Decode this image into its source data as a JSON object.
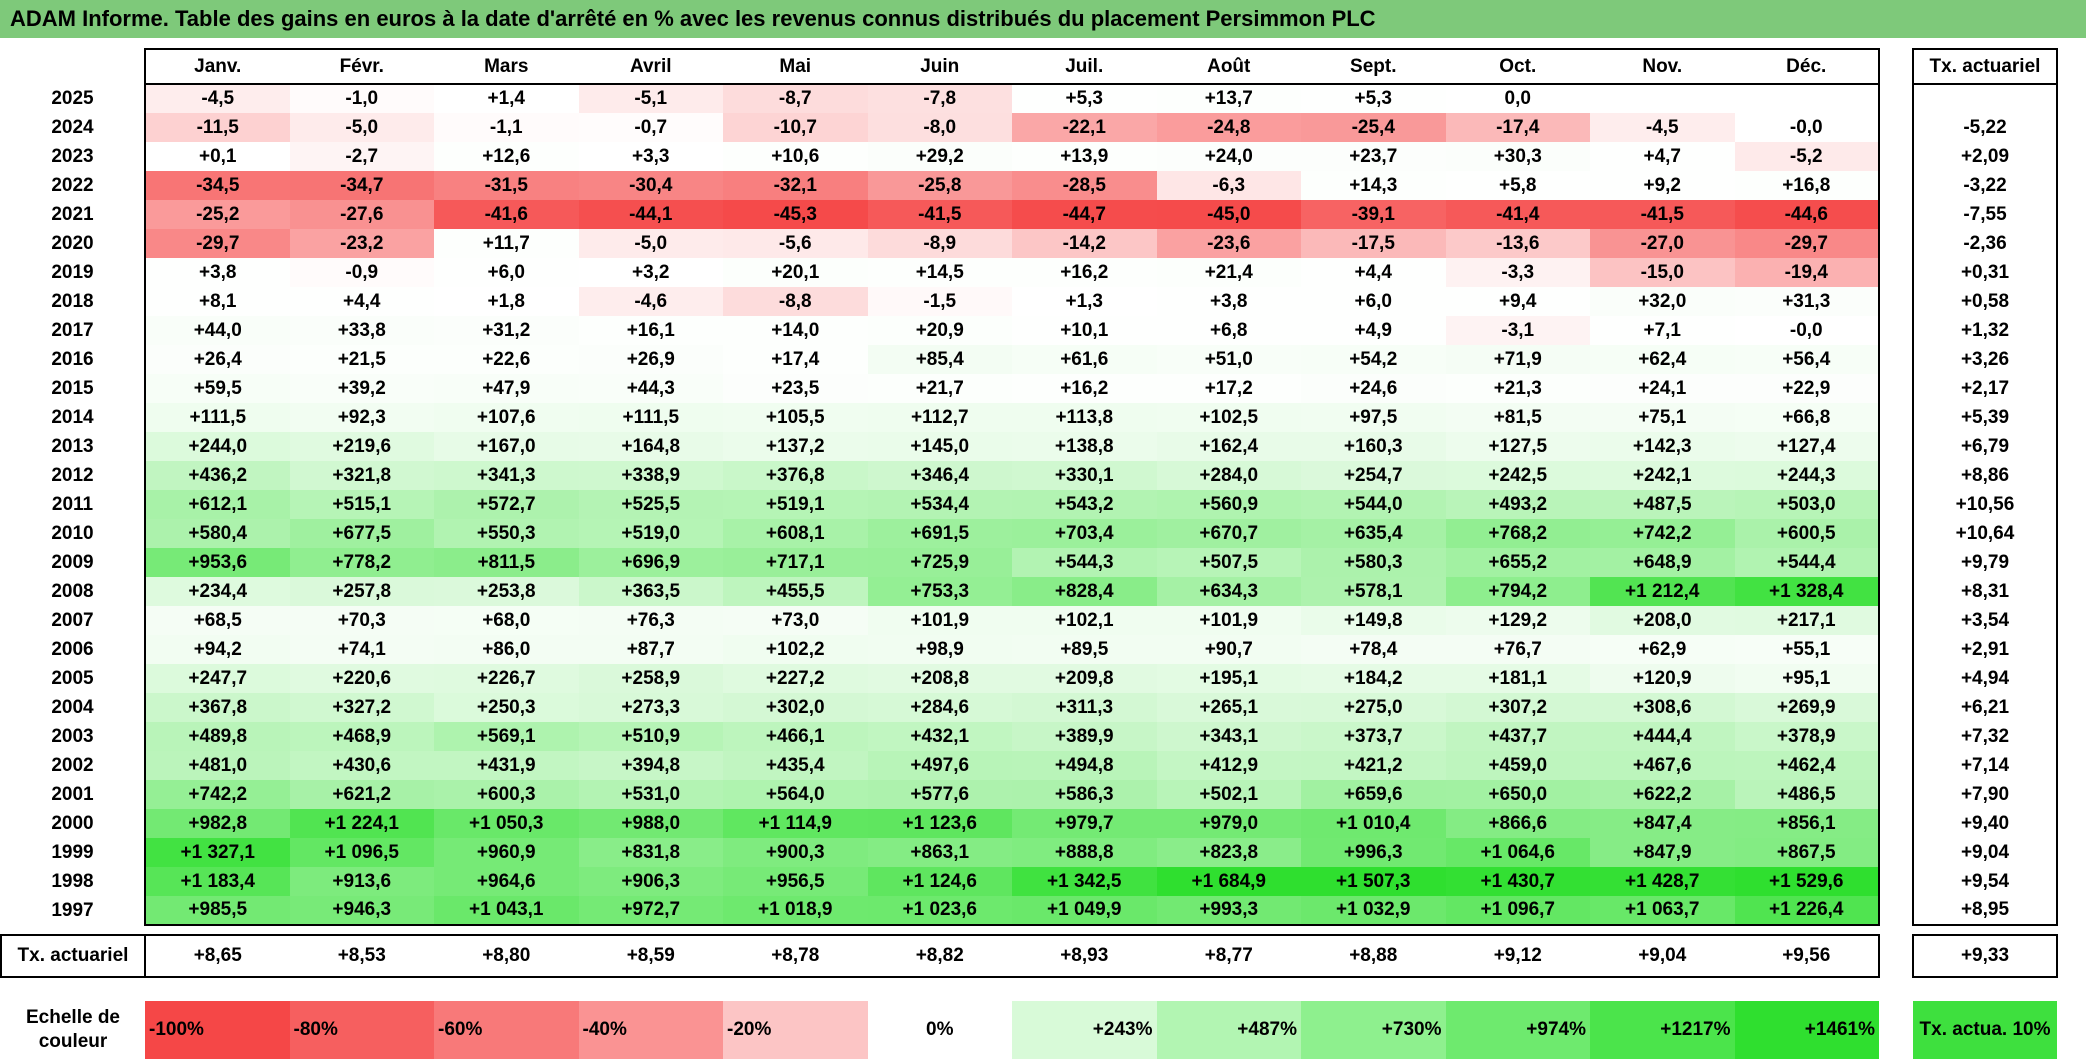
{
  "title": "ADAM Informe. Table des gains en euros à la date d'arrêté en % avec les revenus connus distribués du placement Persimmon PLC",
  "months": [
    "Janv.",
    "Févr.",
    "Mars",
    "Avril",
    "Mai",
    "Juin",
    "Juil.",
    "Août",
    "Sept.",
    "Oct.",
    "Nov.",
    "Déc."
  ],
  "rate_header": "Tx. actuariel",
  "rows": [
    {
      "year": "2025",
      "values": [
        "-4,5",
        "-1,0",
        "+1,4",
        "-5,1",
        "-8,7",
        "-7,8",
        "+5,3",
        "+13,7",
        "+5,3",
        "0,0",
        "",
        ""
      ],
      "rate": ""
    },
    {
      "year": "2024",
      "values": [
        "-11,5",
        "-5,0",
        "-1,1",
        "-0,7",
        "-10,7",
        "-8,0",
        "-22,1",
        "-24,8",
        "-25,4",
        "-17,4",
        "-4,5",
        "-0,0"
      ],
      "rate": "-5,22"
    },
    {
      "year": "2023",
      "values": [
        "+0,1",
        "-2,7",
        "+12,6",
        "+3,3",
        "+10,6",
        "+29,2",
        "+13,9",
        "+24,0",
        "+23,7",
        "+30,3",
        "+4,7",
        "-5,2"
      ],
      "rate": "+2,09"
    },
    {
      "year": "2022",
      "values": [
        "-34,5",
        "-34,7",
        "-31,5",
        "-30,4",
        "-32,1",
        "-25,8",
        "-28,5",
        "-6,3",
        "+14,3",
        "+5,8",
        "+9,2",
        "+16,8"
      ],
      "rate": "-3,22"
    },
    {
      "year": "2021",
      "values": [
        "-25,2",
        "-27,6",
        "-41,6",
        "-44,1",
        "-45,3",
        "-41,5",
        "-44,7",
        "-45,0",
        "-39,1",
        "-41,4",
        "-41,5",
        "-44,6"
      ],
      "rate": "-7,55"
    },
    {
      "year": "2020",
      "values": [
        "-29,7",
        "-23,2",
        "+11,7",
        "-5,0",
        "-5,6",
        "-8,9",
        "-14,2",
        "-23,6",
        "-17,5",
        "-13,6",
        "-27,0",
        "-29,7"
      ],
      "rate": "-2,36"
    },
    {
      "year": "2019",
      "values": [
        "+3,8",
        "-0,9",
        "+6,0",
        "+3,2",
        "+20,1",
        "+14,5",
        "+16,2",
        "+21,4",
        "+4,4",
        "-3,3",
        "-15,0",
        "-19,4"
      ],
      "rate": "+0,31"
    },
    {
      "year": "2018",
      "values": [
        "+8,1",
        "+4,4",
        "+1,8",
        "-4,6",
        "-8,8",
        "-1,5",
        "+1,3",
        "+3,8",
        "+6,0",
        "+9,4",
        "+32,0",
        "+31,3"
      ],
      "rate": "+0,58"
    },
    {
      "year": "2017",
      "values": [
        "+44,0",
        "+33,8",
        "+31,2",
        "+16,1",
        "+14,0",
        "+20,9",
        "+10,1",
        "+6,8",
        "+4,9",
        "-3,1",
        "+7,1",
        "-0,0"
      ],
      "rate": "+1,32"
    },
    {
      "year": "2016",
      "values": [
        "+26,4",
        "+21,5",
        "+22,6",
        "+26,9",
        "+17,4",
        "+85,4",
        "+61,6",
        "+51,0",
        "+54,2",
        "+71,9",
        "+62,4",
        "+56,4"
      ],
      "rate": "+3,26"
    },
    {
      "year": "2015",
      "values": [
        "+59,5",
        "+39,2",
        "+47,9",
        "+44,3",
        "+23,5",
        "+21,7",
        "+16,2",
        "+17,2",
        "+24,6",
        "+21,3",
        "+24,1",
        "+22,9"
      ],
      "rate": "+2,17"
    },
    {
      "year": "2014",
      "values": [
        "+111,5",
        "+92,3",
        "+107,6",
        "+111,5",
        "+105,5",
        "+112,7",
        "+113,8",
        "+102,5",
        "+97,5",
        "+81,5",
        "+75,1",
        "+66,8"
      ],
      "rate": "+5,39"
    },
    {
      "year": "2013",
      "values": [
        "+244,0",
        "+219,6",
        "+167,0",
        "+164,8",
        "+137,2",
        "+145,0",
        "+138,8",
        "+162,4",
        "+160,3",
        "+127,5",
        "+142,3",
        "+127,4"
      ],
      "rate": "+6,79"
    },
    {
      "year": "2012",
      "values": [
        "+436,2",
        "+321,8",
        "+341,3",
        "+338,9",
        "+376,8",
        "+346,4",
        "+330,1",
        "+284,0",
        "+254,7",
        "+242,5",
        "+242,1",
        "+244,3"
      ],
      "rate": "+8,86"
    },
    {
      "year": "2011",
      "values": [
        "+612,1",
        "+515,1",
        "+572,7",
        "+525,5",
        "+519,1",
        "+534,4",
        "+543,2",
        "+560,9",
        "+544,0",
        "+493,2",
        "+487,5",
        "+503,0"
      ],
      "rate": "+10,56"
    },
    {
      "year": "2010",
      "values": [
        "+580,4",
        "+677,5",
        "+550,3",
        "+519,0",
        "+608,1",
        "+691,5",
        "+703,4",
        "+670,7",
        "+635,4",
        "+768,2",
        "+742,2",
        "+600,5"
      ],
      "rate": "+10,64"
    },
    {
      "year": "2009",
      "values": [
        "+953,6",
        "+778,2",
        "+811,5",
        "+696,9",
        "+717,1",
        "+725,9",
        "+544,3",
        "+507,5",
        "+580,3",
        "+655,2",
        "+648,9",
        "+544,4"
      ],
      "rate": "+9,79"
    },
    {
      "year": "2008",
      "values": [
        "+234,4",
        "+257,8",
        "+253,8",
        "+363,5",
        "+455,5",
        "+753,3",
        "+828,4",
        "+634,3",
        "+578,1",
        "+794,2",
        "+1 212,4",
        "+1 328,4"
      ],
      "rate": "+8,31"
    },
    {
      "year": "2007",
      "values": [
        "+68,5",
        "+70,3",
        "+68,0",
        "+76,3",
        "+73,0",
        "+101,9",
        "+102,1",
        "+101,9",
        "+149,8",
        "+129,2",
        "+208,0",
        "+217,1"
      ],
      "rate": "+3,54"
    },
    {
      "year": "2006",
      "values": [
        "+94,2",
        "+74,1",
        "+86,0",
        "+87,7",
        "+102,2",
        "+98,9",
        "+89,5",
        "+90,7",
        "+78,4",
        "+76,7",
        "+62,9",
        "+55,1"
      ],
      "rate": "+2,91"
    },
    {
      "year": "2005",
      "values": [
        "+247,7",
        "+220,6",
        "+226,7",
        "+258,9",
        "+227,2",
        "+208,8",
        "+209,8",
        "+195,1",
        "+184,2",
        "+181,1",
        "+120,9",
        "+95,1"
      ],
      "rate": "+4,94"
    },
    {
      "year": "2004",
      "values": [
        "+367,8",
        "+327,2",
        "+250,3",
        "+273,3",
        "+302,0",
        "+284,6",
        "+311,3",
        "+265,1",
        "+275,0",
        "+307,2",
        "+308,6",
        "+269,9"
      ],
      "rate": "+6,21"
    },
    {
      "year": "2003",
      "values": [
        "+489,8",
        "+468,9",
        "+569,1",
        "+510,9",
        "+466,1",
        "+432,1",
        "+389,9",
        "+343,1",
        "+373,7",
        "+437,7",
        "+444,4",
        "+378,9"
      ],
      "rate": "+7,32"
    },
    {
      "year": "2002",
      "values": [
        "+481,0",
        "+430,6",
        "+431,9",
        "+394,8",
        "+435,4",
        "+497,6",
        "+494,8",
        "+412,9",
        "+421,2",
        "+459,0",
        "+467,6",
        "+462,4"
      ],
      "rate": "+7,14"
    },
    {
      "year": "2001",
      "values": [
        "+742,2",
        "+621,2",
        "+600,3",
        "+531,0",
        "+564,0",
        "+577,6",
        "+586,3",
        "+502,1",
        "+659,6",
        "+650,0",
        "+622,2",
        "+486,5"
      ],
      "rate": "+7,90"
    },
    {
      "year": "2000",
      "values": [
        "+982,8",
        "+1 224,1",
        "+1 050,3",
        "+988,0",
        "+1 114,9",
        "+1 123,6",
        "+979,7",
        "+979,0",
        "+1 010,4",
        "+866,6",
        "+847,4",
        "+856,1"
      ],
      "rate": "+9,40"
    },
    {
      "year": "1999",
      "values": [
        "+1 327,1",
        "+1 096,5",
        "+960,9",
        "+831,8",
        "+900,3",
        "+863,1",
        "+888,8",
        "+823,8",
        "+996,3",
        "+1 064,6",
        "+847,9",
        "+867,5"
      ],
      "rate": "+9,04"
    },
    {
      "year": "1998",
      "values": [
        "+1 183,4",
        "+913,6",
        "+964,6",
        "+906,3",
        "+956,5",
        "+1 124,6",
        "+1 342,5",
        "+1 684,9",
        "+1 507,3",
        "+1 430,7",
        "+1 428,7",
        "+1 529,6"
      ],
      "rate": "+9,54"
    },
    {
      "year": "1997",
      "values": [
        "+985,5",
        "+946,3",
        "+1 043,1",
        "+972,7",
        "+1 018,9",
        "+1 023,6",
        "+1 049,9",
        "+993,3",
        "+1 032,9",
        "+1 096,7",
        "+1 063,7",
        "+1 226,4"
      ],
      "rate": "+8,95"
    }
  ],
  "actuarial_row": {
    "label": "Tx. actuariel",
    "values": [
      "+8,65",
      "+8,53",
      "+8,80",
      "+8,59",
      "+8,78",
      "+8,82",
      "+8,93",
      "+8,77",
      "+8,88",
      "+9,12",
      "+9,04",
      "+9,56"
    ],
    "rate": "+9,33"
  },
  "scale": {
    "label": "Echelle de couleur",
    "steps": [
      {
        "text": "-100%",
        "color": "#f54747"
      },
      {
        "text": "-80%",
        "color": "#f65f5f"
      },
      {
        "text": "-60%",
        "color": "#f87979"
      },
      {
        "text": "-40%",
        "color": "#fa9393"
      },
      {
        "text": "-20%",
        "color": "#fcc5c5"
      },
      {
        "text": "0%",
        "color": "#ffffff"
      },
      {
        "text": "+243%",
        "color": "#d8fad8"
      },
      {
        "text": "+487%",
        "color": "#b2f5b2"
      },
      {
        "text": "+730%",
        "color": "#8ef08e"
      },
      {
        "text": "+974%",
        "color": "#6eea6e"
      },
      {
        "text": "+1217%",
        "color": "#4be44b"
      },
      {
        "text": "+1461%",
        "color": "#2fdf2f"
      }
    ],
    "rate_label": "Tx. actua. 10%",
    "rate_color": "#3ee03e"
  },
  "colors": {
    "title_bar": "#7ec97a",
    "negative_max": "#f54747",
    "positive_max": "#2fdf2f"
  }
}
